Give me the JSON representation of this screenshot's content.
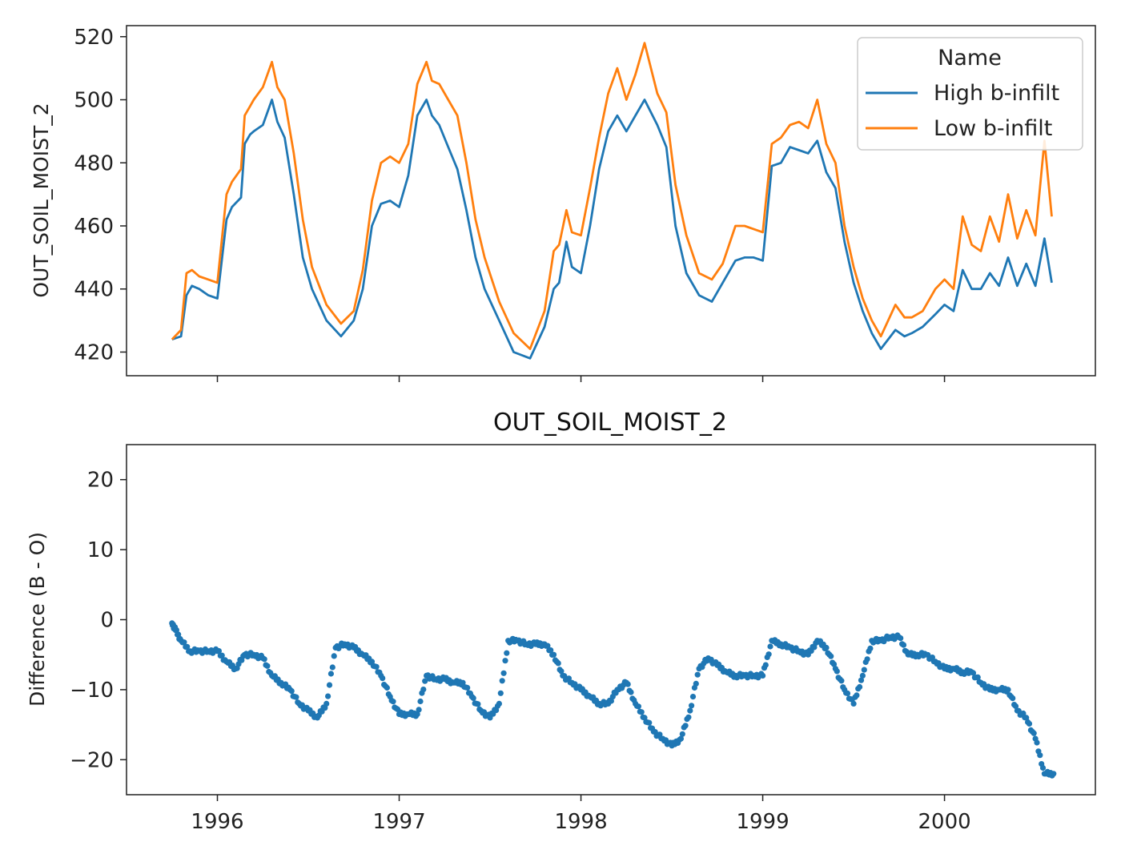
{
  "chart_data": [
    {
      "type": "line",
      "title": "",
      "xlabel": "",
      "ylabel": "OUT_SOIL_MOIST_2",
      "ylim": [
        412.5,
        523.5
      ],
      "xlim": [
        1995.5,
        2000.83
      ],
      "yticks": [
        420,
        440,
        460,
        480,
        500,
        520
      ],
      "legend": {
        "title": "Name",
        "location": "top-right"
      },
      "series": [
        {
          "name": "High b-infilt",
          "color": "#1f77b4",
          "x": [
            1995.75,
            1995.8,
            1995.83,
            1995.86,
            1995.9,
            1995.95,
            1996.0,
            1996.05,
            1996.08,
            1996.13,
            1996.15,
            1996.18,
            1996.2,
            1996.25,
            1996.3,
            1996.33,
            1996.37,
            1996.42,
            1996.47,
            1996.52,
            1996.6,
            1996.68,
            1996.75,
            1996.8,
            1996.85,
            1996.9,
            1996.95,
            1997.0,
            1997.05,
            1997.1,
            1997.15,
            1997.18,
            1997.22,
            1997.27,
            1997.32,
            1997.37,
            1997.42,
            1997.47,
            1997.55,
            1997.63,
            1997.72,
            1997.8,
            1997.85,
            1997.88,
            1997.92,
            1997.95,
            1998.0,
            1998.05,
            1998.1,
            1998.15,
            1998.2,
            1998.25,
            1998.3,
            1998.35,
            1998.42,
            1998.47,
            1998.52,
            1998.58,
            1998.65,
            1998.72,
            1998.78,
            1998.85,
            1998.9,
            1998.95,
            1999.0,
            1999.05,
            1999.1,
            1999.15,
            1999.2,
            1999.25,
            1999.3,
            1999.35,
            1999.4,
            1999.45,
            1999.5,
            1999.55,
            1999.6,
            1999.65,
            1999.73,
            1999.78,
            1999.82,
            1999.88,
            1999.95,
            2000.0,
            2000.05,
            2000.1,
            2000.15,
            2000.2,
            2000.25,
            2000.3,
            2000.35,
            2000.4,
            2000.45,
            2000.5,
            2000.55,
            2000.59
          ],
          "values": [
            424,
            425,
            438,
            441,
            440,
            438,
            437,
            462,
            466,
            469,
            486,
            489,
            490,
            492,
            500,
            493,
            488,
            470,
            450,
            440,
            430,
            425,
            430,
            440,
            460,
            467,
            468,
            466,
            476,
            495,
            500,
            495,
            492,
            485,
            478,
            465,
            450,
            440,
            430,
            420,
            418,
            428,
            440,
            442,
            455,
            447,
            445,
            460,
            478,
            490,
            495,
            490,
            495,
            500,
            492,
            485,
            460,
            445,
            438,
            436,
            442,
            449,
            450,
            450,
            449,
            479,
            480,
            485,
            484,
            483,
            487,
            477,
            472,
            455,
            442,
            433,
            426,
            421,
            427,
            425,
            426,
            428,
            432,
            435,
            433,
            446,
            440,
            440,
            445,
            441,
            450,
            441,
            448,
            441,
            456,
            442
          ]
        },
        {
          "name": "Low b-infilt",
          "color": "#ff7f0e",
          "x": [
            1995.75,
            1995.8,
            1995.83,
            1995.86,
            1995.9,
            1995.95,
            1996.0,
            1996.05,
            1996.08,
            1996.13,
            1996.15,
            1996.18,
            1996.2,
            1996.25,
            1996.3,
            1996.33,
            1996.37,
            1996.42,
            1996.47,
            1996.52,
            1996.6,
            1996.68,
            1996.75,
            1996.8,
            1996.85,
            1996.9,
            1996.95,
            1997.0,
            1997.05,
            1997.1,
            1997.15,
            1997.18,
            1997.22,
            1997.27,
            1997.32,
            1997.37,
            1997.42,
            1997.47,
            1997.55,
            1997.63,
            1997.72,
            1997.8,
            1997.85,
            1997.88,
            1997.92,
            1997.95,
            1998.0,
            1998.05,
            1998.1,
            1998.15,
            1998.2,
            1998.25,
            1998.3,
            1998.35,
            1998.42,
            1998.47,
            1998.52,
            1998.58,
            1998.65,
            1998.72,
            1998.78,
            1998.85,
            1998.9,
            1998.95,
            1999.0,
            1999.05,
            1999.1,
            1999.15,
            1999.2,
            1999.25,
            1999.3,
            1999.35,
            1999.4,
            1999.45,
            1999.5,
            1999.55,
            1999.6,
            1999.65,
            1999.73,
            1999.78,
            1999.82,
            1999.88,
            1999.95,
            2000.0,
            2000.05,
            2000.1,
            2000.15,
            2000.2,
            2000.25,
            2000.3,
            2000.35,
            2000.4,
            2000.45,
            2000.5,
            2000.55,
            2000.59
          ],
          "values": [
            424,
            427,
            445,
            446,
            444,
            443,
            442,
            470,
            474,
            478,
            495,
            498,
            500,
            504,
            512,
            504,
            500,
            483,
            462,
            447,
            435,
            429,
            433,
            446,
            468,
            480,
            482,
            480,
            486,
            505,
            512,
            506,
            505,
            500,
            495,
            480,
            462,
            450,
            436,
            426,
            421,
            433,
            452,
            454,
            465,
            458,
            457,
            472,
            488,
            502,
            510,
            500,
            508,
            518,
            502,
            496,
            473,
            457,
            445,
            443,
            448,
            460,
            460,
            459,
            458,
            486,
            488,
            492,
            493,
            491,
            500,
            486,
            480,
            460,
            447,
            437,
            430,
            425,
            435,
            431,
            431,
            433,
            440,
            443,
            440,
            463,
            454,
            452,
            463,
            455,
            470,
            456,
            465,
            457,
            487,
            463
          ]
        }
      ]
    },
    {
      "type": "scatter",
      "title": "OUT_SOIL_MOIST_2",
      "xlabel": "",
      "ylabel": "Difference (B - O)",
      "ylim": [
        -25,
        25
      ],
      "xlim": [
        1995.5,
        2000.83
      ],
      "yticks": [
        -20,
        -10,
        0,
        10,
        20
      ],
      "xticks": [
        1996,
        1997,
        1998,
        1999,
        2000
      ],
      "xticklabels": [
        "1996",
        "1997",
        "1998",
        "1999",
        "2000"
      ],
      "series": [
        {
          "name": "Difference",
          "color": "#1f77b4",
          "x": [
            1995.75,
            1995.77,
            1995.8,
            1995.85,
            1995.9,
            1995.95,
            1996.0,
            1996.05,
            1996.1,
            1996.15,
            1996.2,
            1996.25,
            1996.3,
            1996.35,
            1996.4,
            1996.45,
            1996.5,
            1996.55,
            1996.6,
            1996.65,
            1996.7,
            1996.75,
            1996.8,
            1996.85,
            1996.9,
            1996.95,
            1997.0,
            1997.05,
            1997.1,
            1997.15,
            1997.2,
            1997.25,
            1997.3,
            1997.35,
            1997.4,
            1997.45,
            1997.5,
            1997.55,
            1997.6,
            1997.65,
            1997.7,
            1997.75,
            1997.8,
            1997.85,
            1997.9,
            1997.95,
            1998.0,
            1998.05,
            1998.1,
            1998.15,
            1998.2,
            1998.25,
            1998.3,
            1998.35,
            1998.4,
            1998.45,
            1998.5,
            1998.55,
            1998.6,
            1998.65,
            1998.7,
            1998.75,
            1998.8,
            1998.85,
            1998.9,
            1998.95,
            1999.0,
            1999.05,
            1999.1,
            1999.15,
            1999.2,
            1999.25,
            1999.3,
            1999.35,
            1999.4,
            1999.45,
            1999.5,
            1999.55,
            1999.6,
            1999.65,
            1999.7,
            1999.75,
            1999.8,
            1999.85,
            1999.9,
            1999.95,
            2000.0,
            2000.05,
            2000.1,
            2000.15,
            2000.2,
            2000.25,
            2000.3,
            2000.35,
            2000.4,
            2000.45,
            2000.5,
            2000.55,
            2000.6
          ],
          "values": [
            -0.5,
            -1.5,
            -3,
            -4.5,
            -4.5,
            -4.5,
            -4.5,
            -6,
            -7,
            -5,
            -5,
            -5.5,
            -8,
            -9,
            -10,
            -12,
            -13,
            -14,
            -12,
            -4,
            -3.5,
            -4,
            -5,
            -6,
            -8,
            -11,
            -13.5,
            -13.5,
            -13.5,
            -8,
            -8.5,
            -8.5,
            -9,
            -9,
            -11,
            -13,
            -14,
            -12,
            -3,
            -3,
            -3.5,
            -3.5,
            -3.5,
            -5,
            -8,
            -9,
            -10,
            -11,
            -12,
            -12,
            -10,
            -9,
            -12,
            -14,
            -16,
            -17,
            -18,
            -17,
            -13,
            -7,
            -5.5,
            -6.5,
            -7.5,
            -8,
            -8,
            -8,
            -8,
            -3,
            -3.5,
            -4,
            -4.5,
            -5,
            -3,
            -4,
            -7,
            -10,
            -12,
            -8,
            -3,
            -3,
            -2.5,
            -2.5,
            -5,
            -5,
            -5,
            -6,
            -7,
            -7,
            -7.5,
            -7.5,
            -9,
            -10,
            -10,
            -10,
            -13,
            -14,
            -17,
            -22,
            -22
          ]
        }
      ]
    }
  ]
}
